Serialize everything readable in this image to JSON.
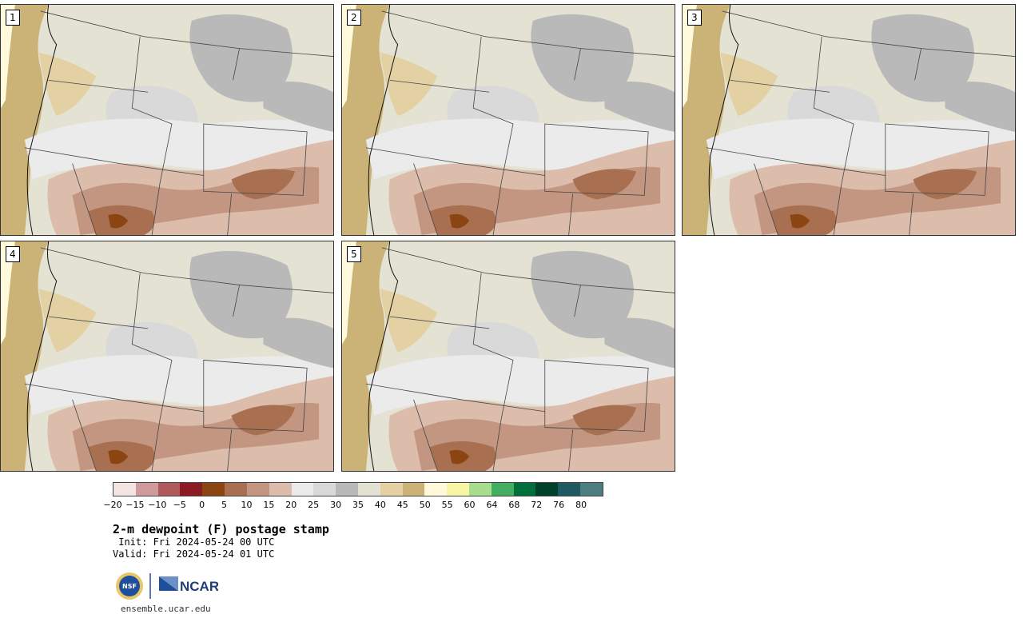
{
  "panels": [
    {
      "label": "1"
    },
    {
      "label": "2"
    },
    {
      "label": "3"
    },
    {
      "label": "4"
    },
    {
      "label": "5"
    }
  ],
  "colorbar": {
    "colors": [
      "#f2e4e2",
      "#cf9a9c",
      "#b05a5e",
      "#8b1a22",
      "#8b4513",
      "#a86f50",
      "#c29680",
      "#dcbcaa",
      "#ebebeb",
      "#d9d9d9",
      "#b9b9b9",
      "#e3e2d3",
      "#e3d1a3",
      "#cbb277",
      "#fffadc",
      "#f7f6a5",
      "#a7dd8c",
      "#43ae5f",
      "#006f3b",
      "#00412b",
      "#1f5961",
      "#4d7d80"
    ],
    "ticks": [
      "−20",
      "−15",
      "−10",
      "−5",
      "0",
      "5",
      "10",
      "15",
      "20",
      "25",
      "30",
      "35",
      "40",
      "45",
      "50",
      "55",
      "60",
      "64",
      "68",
      "72",
      "76",
      "80"
    ]
  },
  "title": "2-m dewpoint (F) postage stamp",
  "init": " Init: Fri 2024-05-24 00 UTC",
  "valid": "Valid: Fri 2024-05-24 01 UTC",
  "logos": {
    "nsf": "NSF",
    "ncar": "NCAR"
  },
  "site": "ensemble.ucar.edu"
}
